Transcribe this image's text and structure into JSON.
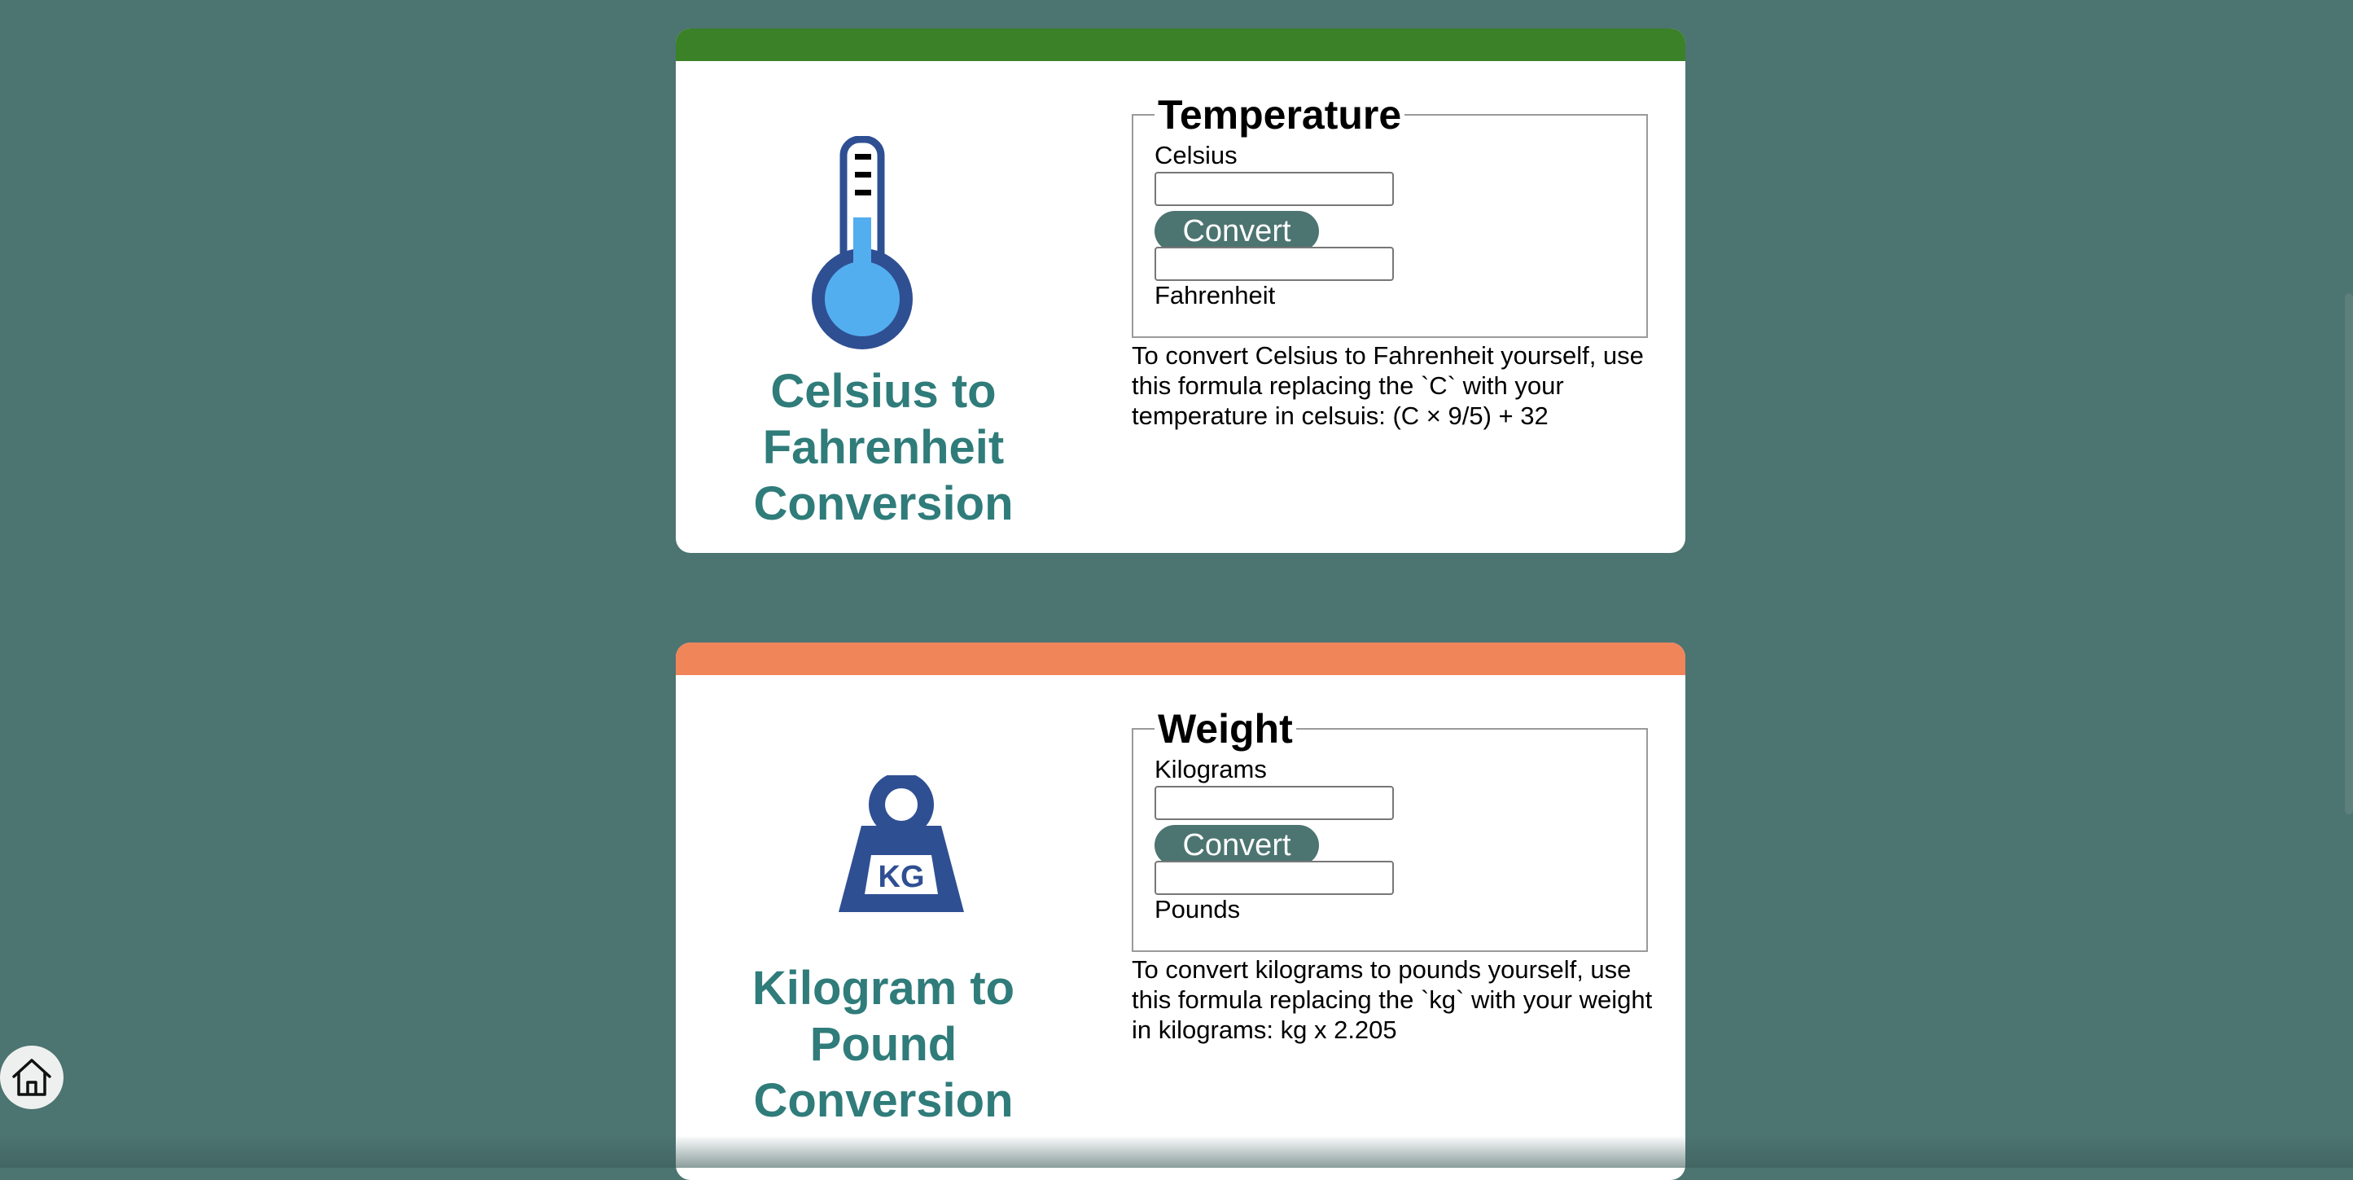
{
  "colors": {
    "background": "#4c7471",
    "card1_accent": "#3a8127",
    "card2_accent": "#f0855a",
    "title_color": "#2f7c7a",
    "button_color": "#4c7471",
    "icon_blue": "#2f4f93",
    "icon_light_blue": "#52aeef"
  },
  "temperature": {
    "icon": "thermometer-icon",
    "title": "Celsius to Fahrenheit Conversion",
    "legend": "Temperature",
    "input_label": "Celsius",
    "input_value": "",
    "button_label": "Convert",
    "output_value": "",
    "output_label": "Fahrenheit",
    "description": "To convert Celsius to Fahrenheit yourself, use this formula replacing the `C` with your temperature in celsuis: (C × 9/5) + 32"
  },
  "weight": {
    "icon": "kg-weight-icon",
    "icon_text": "KG",
    "title": "Kilogram to Pound Conversion",
    "legend": "Weight",
    "input_label": "Kilograms",
    "input_value": "",
    "button_label": "Convert",
    "output_value": "",
    "output_label": "Pounds",
    "description": "To convert kilograms to pounds yourself, use this formula replacing the `kg` with your weight in kilograms: kg x 2.205"
  },
  "home": {
    "icon": "home-icon"
  }
}
